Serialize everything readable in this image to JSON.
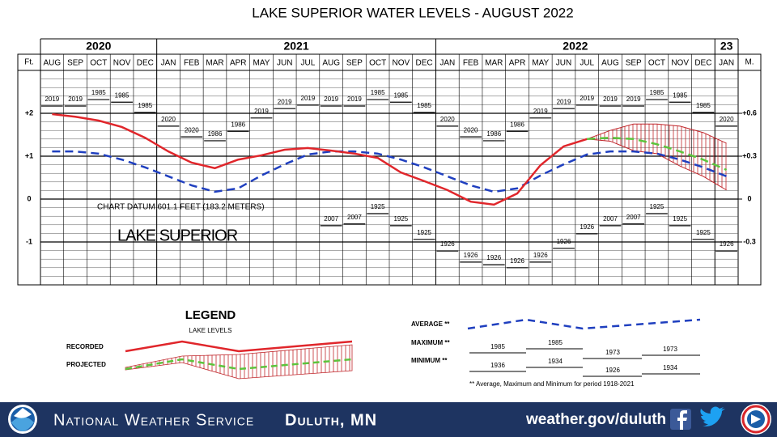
{
  "chart_data": {
    "type": "line",
    "title": "LAKE SUPERIOR WATER LEVELS - AUGUST 2022",
    "y_axis_label": "Ft.",
    "y2_axis_label": "M.",
    "annotation": "CHART DATUM 601.1 FEET (183.2 METERS)",
    "lake_label": "LAKE SUPERIOR",
    "year_groups": [
      {
        "label": "2020",
        "months": 5
      },
      {
        "label": "2021",
        "months": 12
      },
      {
        "label": "2022",
        "months": 12
      },
      {
        "label": "23",
        "months": 1
      }
    ],
    "categories": [
      "AUG",
      "SEP",
      "OCT",
      "NOV",
      "DEC",
      "JAN",
      "FEB",
      "MAR",
      "APR",
      "MAY",
      "JUN",
      "JUL",
      "AUG",
      "SEP",
      "OCT",
      "NOV",
      "DEC",
      "JAN",
      "FEB",
      "MAR",
      "APR",
      "MAY",
      "JUN",
      "JUL",
      "AUG",
      "SEP",
      "OCT",
      "NOV",
      "DEC",
      "JAN"
    ],
    "ylim": [
      -2,
      3
    ],
    "yticks": [
      {
        "value": 2,
        "label": "+2"
      },
      {
        "value": 1,
        "label": "+1"
      },
      0,
      -1
    ],
    "minor_yticks": [
      -1.8,
      -1.6,
      -1.4,
      -1.2,
      -0.8,
      -0.6,
      -0.4,
      -0.2,
      0.2,
      0.4,
      0.6,
      0.8,
      1.2,
      1.4,
      1.6,
      1.8,
      2.2,
      2.4,
      2.6,
      2.8
    ],
    "y2lim": [
      -0.6,
      0.9
    ],
    "y2ticks": [
      {
        "value": 0.6,
        "label": "+0.6"
      },
      {
        "value": 0.3,
        "label": "+0.3"
      },
      0,
      -0.3
    ],
    "grid": true,
    "series": [
      {
        "name": "RECORDED",
        "color": "#e0262b",
        "style": "solid",
        "values": [
          1.98,
          1.92,
          1.83,
          1.68,
          1.43,
          1.11,
          0.85,
          0.72,
          0.92,
          1.02,
          1.15,
          1.19,
          1.13,
          1.06,
          0.96,
          0.62,
          0.42,
          0.21,
          -0.06,
          -0.13,
          0.13,
          0.79,
          1.23,
          1.4,
          null,
          null,
          null,
          null,
          null,
          null
        ]
      },
      {
        "name": "AVERAGE **",
        "color": "#1f3fbf",
        "style": "dashed",
        "values": [
          1.11,
          1.11,
          1.06,
          0.92,
          0.74,
          0.53,
          0.32,
          0.17,
          0.25,
          0.55,
          0.81,
          1.04,
          1.11,
          1.11,
          1.06,
          0.92,
          0.74,
          0.53,
          0.32,
          0.17,
          0.25,
          0.55,
          0.81,
          1.04,
          1.11,
          1.11,
          1.06,
          0.92,
          0.74,
          0.53
        ]
      },
      {
        "name": "PROJECTED",
        "color": "#5cc43c",
        "style": "dashed",
        "values": [
          null,
          null,
          null,
          null,
          null,
          null,
          null,
          null,
          null,
          null,
          null,
          null,
          null,
          null,
          null,
          null,
          null,
          null,
          null,
          null,
          null,
          null,
          null,
          1.4,
          1.43,
          1.4,
          1.28,
          1.11,
          0.92,
          0.68
        ]
      }
    ],
    "projection_max": [
      null,
      null,
      null,
      null,
      null,
      null,
      null,
      null,
      null,
      null,
      null,
      null,
      null,
      null,
      null,
      null,
      null,
      null,
      null,
      null,
      null,
      null,
      null,
      1.4,
      1.6,
      1.75,
      1.75,
      1.7,
      1.55,
      1.3
    ],
    "projection_min": [
      null,
      null,
      null,
      null,
      null,
      null,
      null,
      null,
      null,
      null,
      null,
      null,
      null,
      null,
      null,
      null,
      null,
      null,
      null,
      null,
      null,
      null,
      null,
      1.4,
      1.35,
      1.13,
      1.06,
      0.77,
      0.53,
      0.21
    ],
    "band_color": "#c0262b",
    "maximum": {
      "name": "MAXIMUM **",
      "labels": [
        "2019",
        "2019",
        "1985",
        "1985",
        "1985",
        "2020",
        "2020",
        "1986",
        "1986",
        "2019",
        "2019",
        "2019",
        "2019",
        "2019",
        "1985",
        "1985",
        "1985",
        "2020",
        "2020",
        "1986",
        "1986",
        "2019",
        "2019",
        "2019",
        "2019",
        "2019",
        "1985",
        "1985",
        "1985",
        "2020"
      ],
      "values": [
        2.17,
        2.17,
        2.32,
        2.26,
        2.02,
        1.7,
        1.45,
        1.36,
        1.58,
        1.89,
        2.11,
        2.19,
        2.17,
        2.17,
        2.32,
        2.26,
        2.02,
        1.7,
        1.45,
        1.36,
        1.58,
        1.89,
        2.11,
        2.19,
        2.17,
        2.17,
        2.32,
        2.26,
        2.02,
        1.7
      ]
    },
    "minimum": {
      "name": "MINIMUM **",
      "labels": [
        null,
        null,
        null,
        null,
        null,
        null,
        null,
        null,
        null,
        null,
        null,
        null,
        "2007",
        "2007",
        "1925",
        "1925",
        "1925",
        "1926",
        "1926",
        "1926",
        "1926",
        "1926",
        "1926",
        "1926",
        "2007",
        "2007",
        "1925",
        "1925",
        "1925",
        "1926"
      ],
      "values": [
        null,
        null,
        null,
        null,
        null,
        null,
        null,
        null,
        null,
        null,
        null,
        null,
        -0.62,
        -0.58,
        -0.34,
        -0.62,
        -0.94,
        -1.21,
        -1.47,
        -1.53,
        -1.6,
        -1.47,
        -1.15,
        -0.81,
        -0.62,
        -0.58,
        -0.34,
        -0.62,
        -0.94,
        -1.21
      ]
    }
  },
  "legend": {
    "title": "LEGEND",
    "subtitle": "LAKE LEVELS",
    "max_years": [
      "1985",
      "1985",
      "1973",
      "1973"
    ],
    "min_years": [
      "1936",
      "1934",
      "1926",
      "1934"
    ],
    "footnote": "** Average, Maximum and Minimum for period 1918-2021"
  },
  "footer": {
    "agency": "National Weather Service",
    "office": "Duluth, MN",
    "url": "weather.gov/duluth"
  }
}
